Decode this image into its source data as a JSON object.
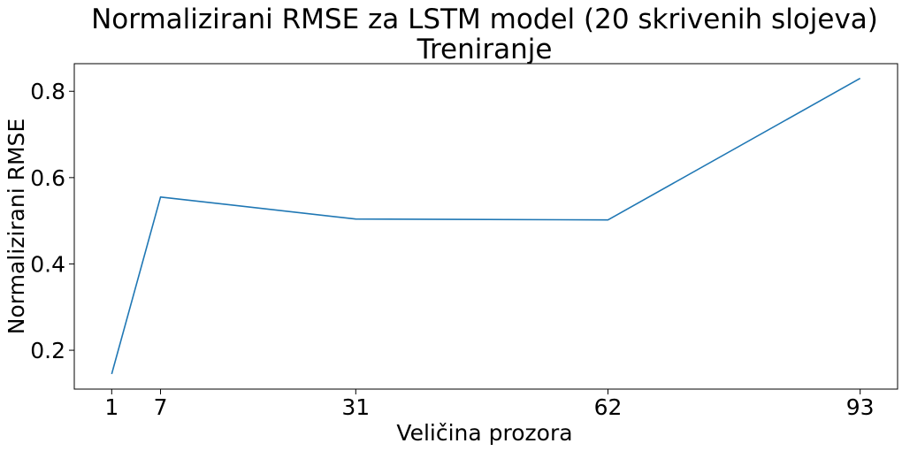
{
  "chart_data": {
    "type": "line",
    "title": "Normalizirani RMSE za LSTM model (20 skrivenih slojeva)",
    "subtitle": "Treniranje",
    "xlabel": "Veličina prozora",
    "ylabel": "Normalizirani RMSE",
    "x": [
      1,
      7,
      31,
      62,
      93
    ],
    "series": [
      {
        "values": [
          0.145,
          0.555,
          0.504,
          0.502,
          0.83
        ],
        "color": "#1f77b4"
      }
    ],
    "xticks": [
      1,
      7,
      31,
      62,
      93
    ],
    "xtick_labels": [
      "1",
      "7",
      "31",
      "62",
      "93"
    ],
    "yticks": [
      0.2,
      0.4,
      0.6,
      0.8
    ],
    "ytick_labels": [
      "0.2",
      "0.4",
      "0.6",
      "0.8"
    ],
    "xlim": [
      -3.6,
      97.6
    ],
    "ylim": [
      0.11,
      0.864
    ],
    "grid": false
  }
}
